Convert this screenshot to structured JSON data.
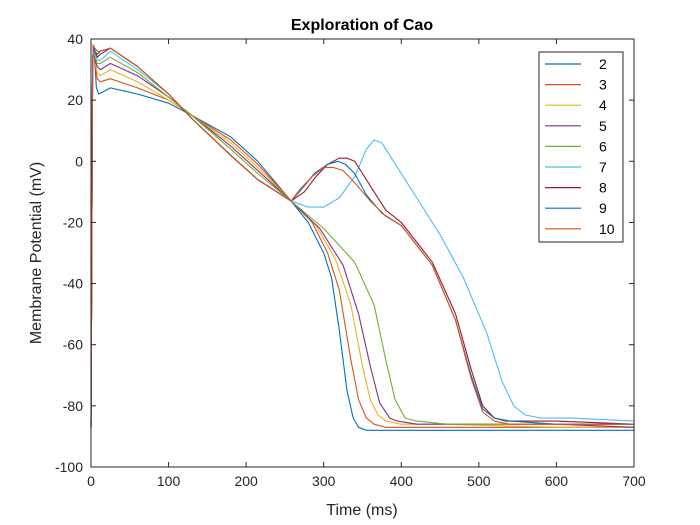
{
  "chart_data": {
    "type": "line",
    "title": "Exploration of Cao",
    "xlabel": "Time (ms)",
    "ylabel": "Membrane Potential (mV)",
    "xlim": [
      0,
      700
    ],
    "ylim": [
      -100,
      40
    ],
    "xticks": [
      0,
      100,
      200,
      300,
      400,
      500,
      600,
      700
    ],
    "yticks": [
      -100,
      -80,
      -60,
      -40,
      -20,
      0,
      20,
      40
    ],
    "legend_position": "top-right",
    "grid": false,
    "series": [
      {
        "name": "2",
        "color": "#0072BD",
        "x": [
          0,
          2,
          3,
          5,
          7,
          10,
          25,
          60,
          100,
          130,
          180,
          215,
          258,
          280,
          300,
          310,
          320,
          330,
          338,
          345,
          355,
          370,
          400,
          500,
          600,
          700
        ],
        "y": [
          -87,
          30,
          38,
          32,
          24,
          22,
          24,
          22,
          19,
          15,
          8,
          0,
          -13,
          -20,
          -30,
          -38,
          -55,
          -75,
          -84,
          -87,
          -88,
          -88,
          -88,
          -88,
          -88,
          -88
        ]
      },
      {
        "name": "3",
        "color": "#D95319",
        "x": [
          0,
          2,
          3,
          5,
          8,
          12,
          25,
          60,
          100,
          130,
          180,
          215,
          258,
          285,
          305,
          320,
          335,
          345,
          355,
          365,
          380,
          420,
          500,
          600,
          700
        ],
        "y": [
          -87,
          30,
          38,
          32,
          27,
          26,
          27,
          24,
          20,
          15,
          7,
          -1,
          -13,
          -20,
          -30,
          -42,
          -65,
          -78,
          -84,
          -86,
          -87,
          -87,
          -87,
          -87,
          -87
        ]
      },
      {
        "name": "4",
        "color": "#EDB120",
        "x": [
          0,
          2,
          3,
          5,
          8,
          12,
          25,
          60,
          100,
          130,
          180,
          215,
          258,
          290,
          315,
          335,
          350,
          360,
          370,
          380,
          400,
          450,
          600,
          700
        ],
        "y": [
          -87,
          30,
          38,
          33,
          29,
          28,
          30,
          26,
          20,
          15,
          6,
          -2,
          -13,
          -21,
          -32,
          -47,
          -67,
          -78,
          -83,
          -85,
          -86,
          -86,
          -87,
          -87
        ]
      },
      {
        "name": "5",
        "color": "#7E2F8E",
        "x": [
          0,
          2,
          3,
          5,
          8,
          12,
          25,
          60,
          100,
          130,
          180,
          215,
          258,
          295,
          325,
          345,
          360,
          372,
          385,
          395,
          420,
          480,
          600,
          700
        ],
        "y": [
          -87,
          30,
          38,
          33,
          31,
          30,
          32,
          28,
          21,
          15,
          5,
          -3,
          -13,
          -22,
          -34,
          -50,
          -67,
          -79,
          -84,
          -85,
          -86,
          -86,
          -86,
          -87
        ]
      },
      {
        "name": "6",
        "color": "#77AC30",
        "x": [
          0,
          2,
          3,
          5,
          8,
          12,
          25,
          60,
          100,
          130,
          180,
          215,
          258,
          300,
          340,
          365,
          380,
          392,
          405,
          420,
          460,
          550,
          700
        ],
        "y": [
          -87,
          30,
          38,
          34,
          32,
          32,
          34,
          29,
          21,
          15,
          4,
          -4,
          -13,
          -22,
          -33,
          -47,
          -65,
          -78,
          -84,
          -85,
          -86,
          -86,
          -86
        ]
      },
      {
        "name": "7",
        "color": "#4DBEEE",
        "x": [
          0,
          2,
          3,
          5,
          8,
          12,
          25,
          60,
          100,
          130,
          180,
          215,
          258,
          280,
          300,
          320,
          340,
          355,
          365,
          375,
          390,
          420,
          450,
          480,
          510,
          530,
          545,
          560,
          580,
          620,
          700
        ],
        "y": [
          -87,
          30,
          38,
          35,
          33,
          33,
          36,
          30,
          22,
          14,
          2,
          -6,
          -13,
          -15,
          -15,
          -12,
          -5,
          4,
          7,
          6,
          0,
          -12,
          -24,
          -38,
          -56,
          -72,
          -80,
          -83,
          -84,
          -84,
          -85
        ]
      },
      {
        "name": "8",
        "color": "#A2142F",
        "x": [
          0,
          2,
          3,
          5,
          8,
          12,
          25,
          60,
          100,
          130,
          180,
          215,
          258,
          275,
          290,
          305,
          320,
          330,
          340,
          350,
          365,
          380,
          400,
          440,
          470,
          490,
          505,
          520,
          535,
          555,
          600,
          700
        ],
        "y": [
          -87,
          30,
          38,
          36,
          34,
          35,
          37,
          31,
          22,
          14,
          2,
          -6,
          -13,
          -10,
          -5,
          -1,
          1,
          1,
          0,
          -4,
          -10,
          -16,
          -20,
          -33,
          -50,
          -68,
          -80,
          -84,
          -85,
          -85,
          -85,
          -86
        ]
      },
      {
        "name": "9",
        "color": "#0072BD",
        "x": [
          0,
          2,
          3,
          5,
          8,
          12,
          25,
          60,
          100,
          130,
          180,
          215,
          258,
          272,
          288,
          305,
          318,
          328,
          340,
          355,
          375,
          400,
          440,
          470,
          490,
          505,
          520,
          540,
          600,
          700
        ],
        "y": [
          -87,
          30,
          38,
          36,
          35,
          36,
          37,
          31,
          22,
          14,
          2,
          -6,
          -13,
          -9,
          -4,
          -1,
          0,
          -1,
          -4,
          -11,
          -17,
          -21,
          -34,
          -52,
          -70,
          -81,
          -84,
          -85,
          -86,
          -86
        ]
      },
      {
        "name": "10",
        "color": "#D95319",
        "x": [
          0,
          2,
          3,
          5,
          8,
          12,
          25,
          60,
          100,
          130,
          180,
          215,
          258,
          270,
          285,
          300,
          312,
          325,
          340,
          360,
          380,
          400,
          440,
          470,
          490,
          505,
          520,
          540,
          600,
          700
        ],
        "y": [
          -87,
          30,
          38,
          37,
          36,
          36,
          37,
          31,
          22,
          14,
          2,
          -6,
          -13,
          -9,
          -5,
          -2,
          -2,
          -3,
          -7,
          -13,
          -18,
          -21,
          -34,
          -52,
          -71,
          -82,
          -85,
          -86,
          -86,
          -86
        ]
      }
    ]
  }
}
